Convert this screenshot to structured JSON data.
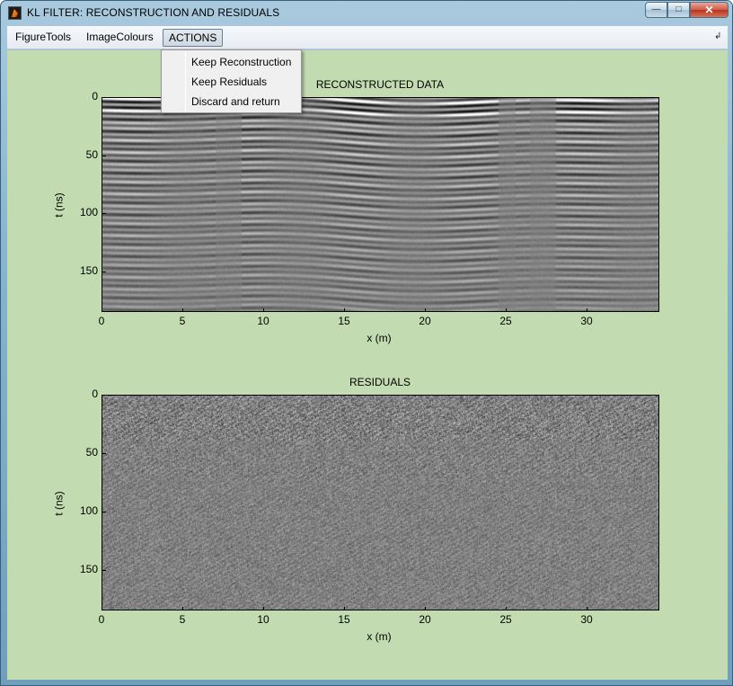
{
  "window": {
    "title": "KL FILTER: RECONSTRUCTION AND RESIDUALS",
    "minimize_glyph": "—",
    "maximize_glyph": "□",
    "close_glyph": "✕"
  },
  "menubar": {
    "items": [
      "FigureTools",
      "ImageColours",
      "ACTIONS"
    ],
    "active": "ACTIONS",
    "overflow_glyph": "↲"
  },
  "actions_menu": {
    "items": [
      "Keep Reconstruction",
      "Keep Residuals",
      "Discard and return"
    ]
  },
  "colors": {
    "figure_background": "#c3dbb0",
    "colormap": "gray"
  },
  "chart_data": [
    {
      "type": "heatmap",
      "title": "RECONSTRUCTED DATA",
      "xlabel": "x (m)",
      "ylabel": "t (ns)",
      "x_ticks": [
        0,
        5,
        10,
        15,
        20,
        25,
        30
      ],
      "y_ticks": [
        0,
        50,
        100,
        150
      ],
      "xlim": [
        0,
        34.5
      ],
      "ylim": [
        0,
        185
      ],
      "y_reversed": true,
      "colormap": "gray",
      "grid": false
    },
    {
      "type": "heatmap",
      "title": "RESIDUALS",
      "xlabel": "x (m)",
      "ylabel": "t (ns)",
      "x_ticks": [
        0,
        5,
        10,
        15,
        20,
        25,
        30
      ],
      "y_ticks": [
        0,
        50,
        100,
        150
      ],
      "xlim": [
        0,
        34.5
      ],
      "ylim": [
        0,
        185
      ],
      "y_reversed": true,
      "colormap": "gray",
      "grid": false
    }
  ]
}
